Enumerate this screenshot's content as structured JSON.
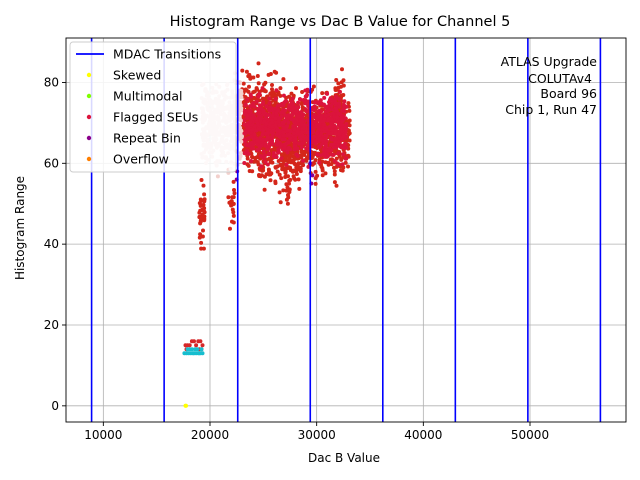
{
  "chart_data": {
    "type": "scatter",
    "title": "Histogram Range vs Dac B Value for Channel 5",
    "xlabel": "Dac B Value",
    "ylabel": "Histogram Range",
    "xlim": [
      6500,
      59000
    ],
    "ylim": [
      -4,
      91
    ],
    "xticks": [
      10000,
      20000,
      30000,
      40000,
      50000
    ],
    "xtick_labels": [
      "10000",
      "20000",
      "30000",
      "40000",
      "50000"
    ],
    "yticks": [
      0,
      20,
      40,
      60,
      80
    ],
    "ytick_labels": [
      "0",
      "20",
      "40",
      "60",
      "80"
    ],
    "grid": true,
    "legend_position": "top-left",
    "annotation": [
      "ATLAS Upgrade",
      "COLUTAv4",
      "Board 96",
      "Chip 1, Run 47"
    ],
    "mdac_transitions": {
      "name": "MDAC Transitions",
      "color": "#0000ff",
      "x": [
        8900,
        15700,
        22600,
        29400,
        36200,
        43000,
        49800,
        56600
      ]
    },
    "legend": [
      {
        "name": "MDAC Transitions",
        "kind": "line",
        "color": "#0000ff"
      },
      {
        "name": "Skewed",
        "kind": "dot",
        "color": "#ffff00"
      },
      {
        "name": "Multimodal",
        "kind": "dot",
        "color": "#7fff00"
      },
      {
        "name": "Flagged SEUs",
        "kind": "dot",
        "color": "#dc143c"
      },
      {
        "name": "Repeat Bin",
        "kind": "dot",
        "color": "#8b008b"
      },
      {
        "name": "Overflow",
        "kind": "dot",
        "color": "#ff7f00"
      }
    ],
    "series": [
      {
        "name": "Skewed",
        "color": "#ffff00",
        "points": [
          [
            17700,
            0
          ],
          [
            17750,
            0
          ]
        ]
      },
      {
        "name": "Main",
        "color": "#d4261a",
        "clusters": [
          {
            "x": [
              19000,
              19500
            ],
            "y": [
              35,
              60
            ],
            "n": 40
          },
          {
            "x": [
              21700,
              22300
            ],
            "y": [
              40,
              62
            ],
            "n": 20
          },
          {
            "x": [
              23000,
              24500
            ],
            "y": [
              55,
              85
            ],
            "n": 220
          },
          {
            "x": [
              24500,
              26500
            ],
            "y": [
              50,
              86
            ],
            "n": 320
          },
          {
            "x": [
              26500,
              28500
            ],
            "y": [
              47,
              83
            ],
            "n": 320
          },
          {
            "x": [
              28500,
              30000
            ],
            "y": [
              53,
              82
            ],
            "n": 200
          },
          {
            "x": [
              30000,
              31500
            ],
            "y": [
              55,
              79
            ],
            "n": 200
          },
          {
            "x": [
              31500,
              32600
            ],
            "y": [
              52,
              87
            ],
            "n": 160
          },
          {
            "x": [
              32600,
              33100
            ],
            "y": [
              57,
              78
            ],
            "n": 40
          }
        ]
      },
      {
        "name": "Flagged SEUs",
        "color": "#dc143c",
        "clusters": [
          {
            "x": [
              23200,
              32800
            ],
            "y": [
              58,
              80
            ],
            "n": 900
          }
        ]
      },
      {
        "name": "Multimodal overlay",
        "color": "#f2d0cc",
        "clusters": [
          {
            "x": [
              19200,
              23000
            ],
            "y": [
              56,
              85
            ],
            "n": 420
          }
        ]
      },
      {
        "name": "Repeat Bin",
        "color": "#8b008b",
        "points": [
          [
            22500,
            56
          ],
          [
            22550,
            58
          ],
          [
            29500,
            55
          ],
          [
            29600,
            57
          ],
          [
            29400,
            60
          ]
        ]
      },
      {
        "name": "Low cluster red",
        "color": "#d62728",
        "points": [
          [
            17700,
            15
          ],
          [
            17900,
            15
          ],
          [
            18100,
            15
          ],
          [
            18300,
            16
          ],
          [
            18500,
            16
          ],
          [
            18700,
            15
          ],
          [
            18900,
            16
          ],
          [
            19100,
            16
          ],
          [
            19300,
            15
          ],
          [
            17800,
            14
          ],
          [
            19000,
            14
          ],
          [
            19200,
            14
          ]
        ]
      },
      {
        "name": "Low cluster teal",
        "color": "#17becf",
        "points": [
          [
            17600,
            13
          ],
          [
            17800,
            13
          ],
          [
            17900,
            14
          ],
          [
            18000,
            13
          ],
          [
            18100,
            14
          ],
          [
            18200,
            13
          ],
          [
            18300,
            14
          ],
          [
            18400,
            13
          ],
          [
            18500,
            13
          ],
          [
            18600,
            14
          ],
          [
            18700,
            13
          ],
          [
            18800,
            14
          ],
          [
            18900,
            13
          ],
          [
            19000,
            13
          ],
          [
            19100,
            13
          ],
          [
            19200,
            14
          ],
          [
            19300,
            13
          ]
        ]
      }
    ]
  }
}
